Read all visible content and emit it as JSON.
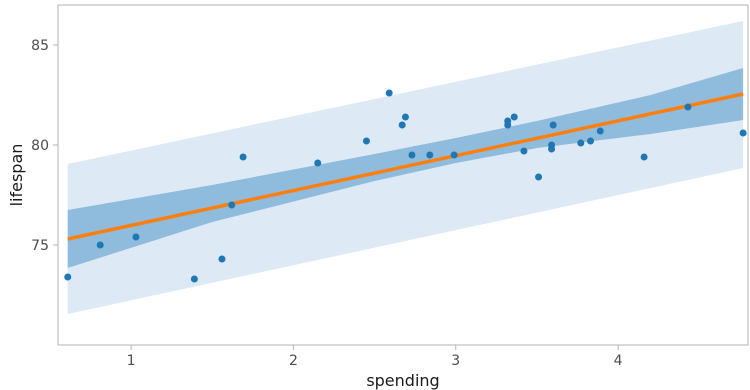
{
  "chart_data": {
    "type": "scatter",
    "title": "",
    "xlabel": "spending",
    "ylabel": "lifespan",
    "xlim": [
      0.55,
      4.8
    ],
    "ylim": [
      70.0,
      87.0
    ],
    "xticks": [
      1,
      2,
      3,
      4
    ],
    "yticks": [
      75,
      80,
      85
    ],
    "grid": false,
    "legend": "none",
    "colors": {
      "points": "#1f77b4",
      "fit_line": "#ff7f0e",
      "confidence_band": "#8fbbdc",
      "prediction_band": "#dde9f4",
      "frame": "#b3b3b3"
    },
    "points": [
      {
        "x": 0.61,
        "y": 73.4
      },
      {
        "x": 0.81,
        "y": 75.0
      },
      {
        "x": 1.03,
        "y": 75.4
      },
      {
        "x": 1.39,
        "y": 73.3
      },
      {
        "x": 1.56,
        "y": 74.3
      },
      {
        "x": 1.62,
        "y": 77.0
      },
      {
        "x": 1.69,
        "y": 79.4
      },
      {
        "x": 2.15,
        "y": 79.1
      },
      {
        "x": 2.45,
        "y": 80.2
      },
      {
        "x": 2.59,
        "y": 82.6
      },
      {
        "x": 2.67,
        "y": 81.0
      },
      {
        "x": 2.69,
        "y": 81.4
      },
      {
        "x": 2.73,
        "y": 79.5
      },
      {
        "x": 2.84,
        "y": 79.5
      },
      {
        "x": 2.99,
        "y": 79.5
      },
      {
        "x": 3.32,
        "y": 81.0
      },
      {
        "x": 3.32,
        "y": 81.2
      },
      {
        "x": 3.36,
        "y": 81.4
      },
      {
        "x": 3.42,
        "y": 79.7
      },
      {
        "x": 3.51,
        "y": 78.4
      },
      {
        "x": 3.59,
        "y": 80.0
      },
      {
        "x": 3.59,
        "y": 79.8
      },
      {
        "x": 3.6,
        "y": 81.0
      },
      {
        "x": 3.77,
        "y": 80.1
      },
      {
        "x": 3.83,
        "y": 80.2
      },
      {
        "x": 3.89,
        "y": 80.7
      },
      {
        "x": 4.16,
        "y": 79.4
      },
      {
        "x": 4.43,
        "y": 81.9
      },
      {
        "x": 4.77,
        "y": 80.6
      }
    ],
    "fit_line": {
      "x": [
        0.61,
        4.77
      ],
      "y": [
        75.3,
        82.55
      ]
    },
    "confidence_band": {
      "x": [
        0.61,
        1.5,
        2.5,
        3.0,
        3.5,
        4.2,
        4.77
      ],
      "lower": [
        73.85,
        76.15,
        78.2,
        79.1,
        79.85,
        80.55,
        81.25
      ],
      "upper": [
        76.75,
        78.0,
        79.55,
        80.35,
        81.2,
        82.5,
        83.85
      ]
    },
    "prediction_band": {
      "x": [
        0.61,
        4.77
      ],
      "lower": [
        71.55,
        78.85
      ],
      "upper": [
        79.05,
        86.2
      ]
    }
  }
}
